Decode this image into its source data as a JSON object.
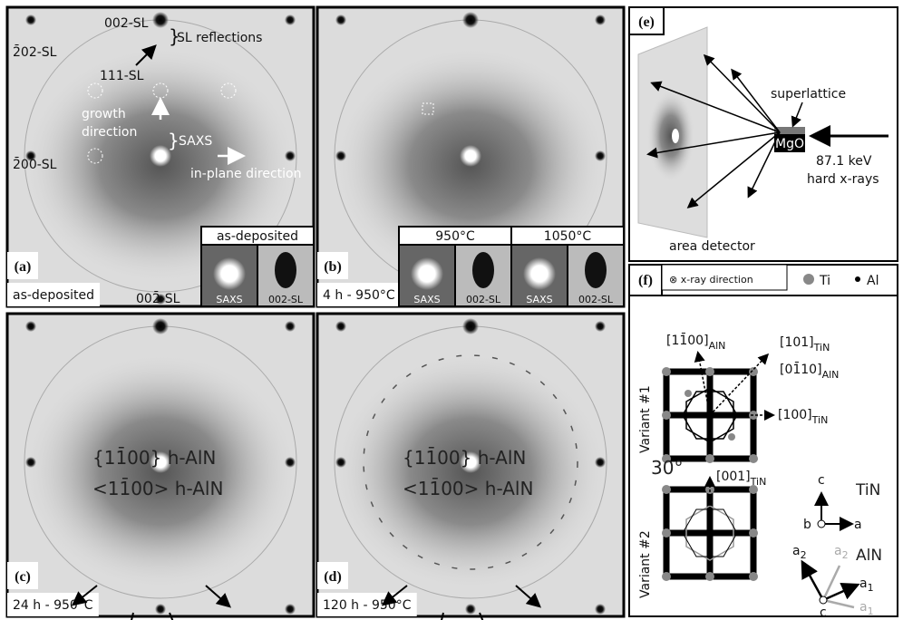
{
  "panels": {
    "a": {
      "label": "(a)",
      "caption": "as-deposited",
      "spot_top": "002-SL",
      "sl_reflections": "SL reflections",
      "spot_tl": "2̄02-SL",
      "spot_111": "111-SL",
      "growth": [
        "growth",
        "direction"
      ],
      "saxs": "SAXS",
      "in_plane": "in-plane direction",
      "spot_left": "2̄00-SL",
      "spot_bottom": "002̄-SL",
      "inset_title": "as-deposited",
      "inset_labels": [
        "SAXS",
        "002-SL"
      ]
    },
    "b": {
      "label": "(b)",
      "caption": "4 h - 950°C",
      "inset_titles": [
        "950°C",
        "1050°C"
      ],
      "inset_labels": [
        "SAXS",
        "002-SL",
        "SAXS",
        "002-SL"
      ]
    },
    "c": {
      "label": "(c)",
      "caption": "24 h - 950°C",
      "family": "{11̄00} h-AlN",
      "direction": "<11̄00> h-AlN"
    },
    "d": {
      "label": "(d)",
      "caption": "120 h - 950°C",
      "family": "{11̄00} h-AlN",
      "direction": "<11̄00> h-AlN"
    },
    "e": {
      "label": "(e)",
      "superlattice": "superlattice",
      "substrate": "MgO",
      "energy": "87.1 keV",
      "beam": "hard x-rays",
      "detector": "area detector"
    },
    "f": {
      "label": "(f)",
      "xray": "⊗ x-ray direction",
      "ti": "Ti",
      "al": "Al",
      "v1_up": {
        "main": "[11̄00]",
        "sub": "AlN"
      },
      "v1_diag": {
        "main": "[101]",
        "sub": "TiN"
      },
      "v1_diag2": {
        "main": "[01̄10]",
        "sub": "AlN"
      },
      "v1_right": {
        "main": "[100]",
        "sub": "TiN"
      },
      "variant1": "Variant #1",
      "variant2": "Variant #2",
      "angle": "30°",
      "v2_up": {
        "main": "[001]",
        "sub": "TiN"
      },
      "tin_axes": {
        "c": "c",
        "b": "b",
        "a": "a",
        "name": "TiN"
      },
      "aln_axes": {
        "a2": {
          "main": "a",
          "sub": "2"
        },
        "a2g": {
          "main": "a",
          "sub": "2"
        },
        "a1": {
          "main": "a",
          "sub": "1"
        },
        "a1g": {
          "main": "a",
          "sub": "1"
        },
        "c": "c",
        "name": "AlN"
      }
    }
  }
}
